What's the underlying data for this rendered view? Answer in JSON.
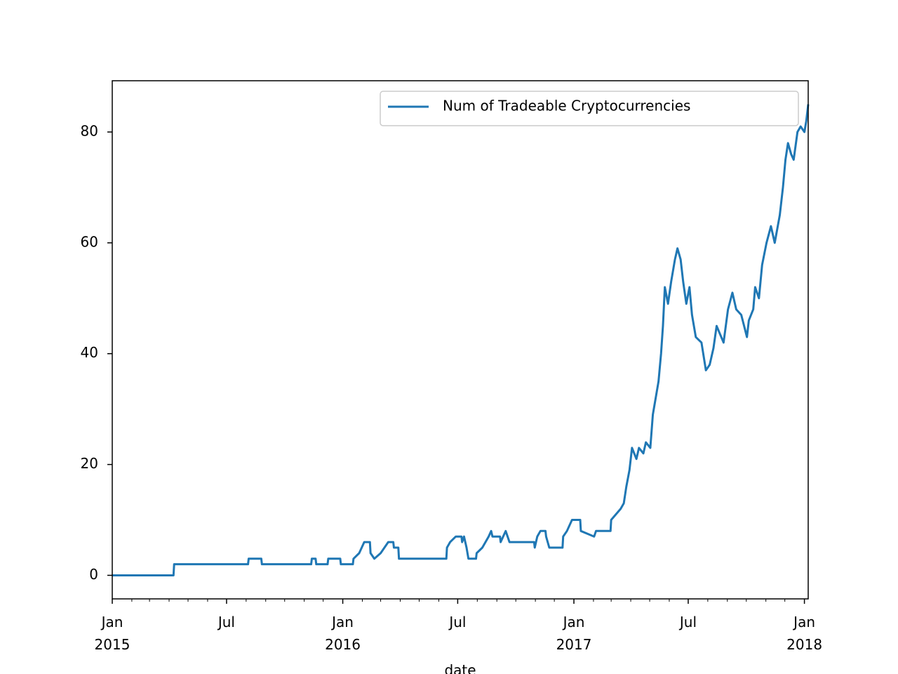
{
  "chart_data": {
    "type": "line",
    "xlabel": "date",
    "x": [
      "2015-01-01",
      "2015-04-08",
      "2015-04-09",
      "2015-08-04",
      "2015-08-05",
      "2015-08-25",
      "2015-08-26",
      "2015-11-12",
      "2015-11-13",
      "2015-11-19",
      "2015-11-20",
      "2015-12-08",
      "2015-12-09",
      "2015-12-28",
      "2015-12-29",
      "2016-01-17",
      "2016-01-18",
      "2016-01-27",
      "2016-01-31",
      "2016-02-04",
      "2016-02-13",
      "2016-02-14",
      "2016-02-20",
      "2016-03-01",
      "2016-03-07",
      "2016-03-13",
      "2016-03-21",
      "2016-03-22",
      "2016-03-29",
      "2016-03-30",
      "2016-06-13",
      "2016-06-14",
      "2016-06-19",
      "2016-06-28",
      "2016-07-07",
      "2016-07-08",
      "2016-07-11",
      "2016-07-15",
      "2016-07-18",
      "2016-07-30",
      "2016-07-31",
      "2016-08-09",
      "2016-08-14",
      "2016-08-19",
      "2016-08-23",
      "2016-08-25",
      "2016-09-06",
      "2016-09-07",
      "2016-09-15",
      "2016-09-21",
      "2016-10-30",
      "2016-10-31",
      "2016-11-04",
      "2016-11-09",
      "2016-11-17",
      "2016-11-18",
      "2016-11-23",
      "2016-12-14",
      "2016-12-15",
      "2016-12-21",
      "2016-12-29",
      "2017-01-11",
      "2017-01-12",
      "2017-02-02",
      "2017-02-05",
      "2017-02-28",
      "2017-03-01",
      "2017-03-16",
      "2017-03-21",
      "2017-03-25",
      "2017-03-30",
      "2017-04-03",
      "2017-04-10",
      "2017-04-14",
      "2017-04-21",
      "2017-04-25",
      "2017-05-02",
      "2017-05-06",
      "2017-05-12",
      "2017-05-15",
      "2017-05-19",
      "2017-05-22",
      "2017-05-25",
      "2017-05-30",
      "2017-06-04",
      "2017-06-10",
      "2017-06-14",
      "2017-06-19",
      "2017-06-23",
      "2017-06-28",
      "2017-07-03",
      "2017-07-07",
      "2017-07-13",
      "2017-07-22",
      "2017-07-29",
      "2017-08-04",
      "2017-08-10",
      "2017-08-15",
      "2017-08-26",
      "2017-09-02",
      "2017-09-09",
      "2017-09-15",
      "2017-09-23",
      "2017-10-02",
      "2017-10-05",
      "2017-10-12",
      "2017-10-15",
      "2017-10-21",
      "2017-10-26",
      "2017-11-02",
      "2017-11-09",
      "2017-11-15",
      "2017-11-23",
      "2017-11-28",
      "2017-12-02",
      "2017-12-06",
      "2017-12-11",
      "2017-12-15",
      "2017-12-21",
      "2017-12-26",
      "2018-01-01",
      "2018-01-04",
      "2018-01-07"
    ],
    "series": [
      {
        "name": "Num of Tradeable Cryptocurrencies",
        "color": "#1f77b4",
        "values": [
          0,
          0,
          2,
          2,
          3,
          3,
          2,
          2,
          3,
          3,
          2,
          2,
          3,
          3,
          2,
          2,
          3,
          4,
          5,
          6,
          6,
          4,
          3,
          4,
          5,
          6,
          6,
          5,
          5,
          3,
          3,
          5,
          6,
          7,
          7,
          6,
          7,
          5,
          3,
          3,
          4,
          5,
          6,
          7,
          8,
          7,
          7,
          6,
          8,
          6,
          6,
          5,
          7,
          8,
          8,
          7,
          5,
          5,
          7,
          8,
          10,
          10,
          8,
          7,
          8,
          8,
          10,
          12,
          13,
          16,
          19,
          23,
          21,
          23,
          22,
          24,
          23,
          29,
          33,
          35,
          40,
          45,
          52,
          49,
          53,
          57,
          59,
          57,
          53,
          49,
          52,
          47,
          43,
          42,
          37,
          38,
          41,
          45,
          42,
          48,
          51,
          48,
          47,
          43,
          46,
          48,
          52,
          50,
          56,
          60,
          63,
          60,
          65,
          70,
          75,
          78,
          76,
          75,
          80,
          81,
          80,
          82,
          85
        ]
      }
    ],
    "xlim": [
      "2015-01-01",
      "2018-01-07"
    ],
    "xticks": [
      {
        "value": "2015-01-01",
        "label": "Jan\n2015"
      },
      {
        "value": "2015-07-01",
        "label": "Jul"
      },
      {
        "value": "2016-01-01",
        "label": "Jan\n2016"
      },
      {
        "value": "2016-07-01",
        "label": "Jul"
      },
      {
        "value": "2017-01-01",
        "label": "Jan\n2017"
      },
      {
        "value": "2017-07-01",
        "label": "Jul"
      },
      {
        "value": "2018-01-01",
        "label": "Jan\n2018"
      }
    ],
    "xminorticks": [
      "2015-02-01",
      "2015-03-01",
      "2015-04-01",
      "2015-05-01",
      "2015-06-01",
      "2015-08-01",
      "2015-09-01",
      "2015-10-01",
      "2015-11-01",
      "2015-12-01",
      "2016-02-01",
      "2016-03-01",
      "2016-04-01",
      "2016-05-01",
      "2016-06-01",
      "2016-08-01",
      "2016-09-01",
      "2016-10-01",
      "2016-11-01",
      "2016-12-01",
      "2017-02-01",
      "2017-03-01",
      "2017-04-01",
      "2017-05-01",
      "2017-06-01",
      "2017-08-01",
      "2017-09-01",
      "2017-10-01",
      "2017-11-01",
      "2017-12-01"
    ],
    "ylim": [
      -4.25,
      89.25
    ],
    "yticks": [
      0,
      20,
      40,
      60,
      80
    ],
    "grid": false,
    "legend": "upper right"
  }
}
